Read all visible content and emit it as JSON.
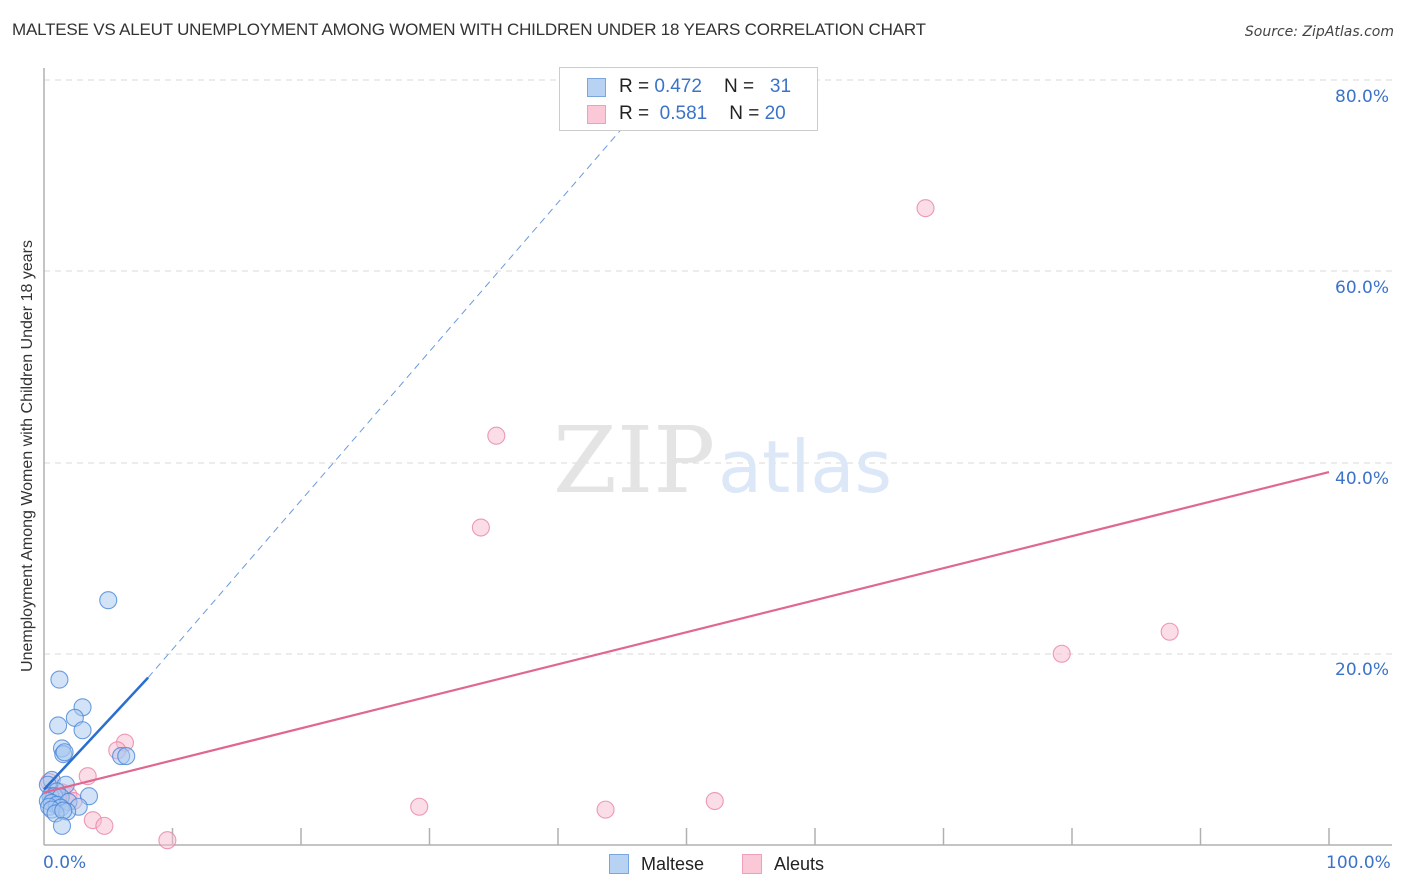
{
  "header": {
    "title": "MALTESE VS ALEUT UNEMPLOYMENT AMONG WOMEN WITH CHILDREN UNDER 18 YEARS CORRELATION CHART",
    "source": "Source: ZipAtlas.com"
  },
  "watermark": {
    "zip": "ZIP",
    "atlas": "atlas"
  },
  "legend_top": [
    {
      "r_label": "R =",
      "r_value": "0.472",
      "n_label": "N =",
      "n_value": "31",
      "color": "#a8c8f0"
    },
    {
      "r_label": "R =",
      "r_value": "0.581",
      "n_label": "N =",
      "n_value": "20",
      "color": "#f8bcd0"
    }
  ],
  "legend_bottom": [
    {
      "label": "Maltese",
      "color": "#a8c8f0"
    },
    {
      "label": "Aleuts",
      "color": "#f8bcd0"
    }
  ],
  "axes": {
    "ylabel": "Unemployment Among Women with Children Under 18 years",
    "x_min_label": "0.0%",
    "x_max_label": "100.0%",
    "y_ticks": [
      "20.0%",
      "40.0%",
      "60.0%",
      "80.0%"
    ]
  },
  "colors": {
    "maltese_fill": "#a8c8f0",
    "maltese_stroke": "#4a86d8",
    "maltese_line": "#2a6fd0",
    "aleuts_fill": "#f8bcd0",
    "aleuts_stroke": "#e882a4",
    "aleuts_line": "#e06890",
    "tick_label": "#3b73c8"
  },
  "chart_data": {
    "type": "scatter",
    "title": "MALTESE VS ALEUT UNEMPLOYMENT AMONG WOMEN WITH CHILDREN UNDER 18 YEARS CORRELATION CHART",
    "xlabel": "",
    "ylabel": "Unemployment Among Women with Children Under 18 years",
    "xlim": [
      0,
      100
    ],
    "ylim": [
      0,
      80
    ],
    "x_tick_labels": [
      "0.0%",
      "100.0%"
    ],
    "y_tick_labels": [
      "20.0%",
      "40.0%",
      "60.0%",
      "80.0%"
    ],
    "grid": true,
    "legend_position": "top-center and bottom",
    "series": [
      {
        "name": "Maltese",
        "r": 0.472,
        "n": 31,
        "points": [
          [
            5.0,
            25.6
          ],
          [
            1.2,
            17.3
          ],
          [
            3.0,
            14.4
          ],
          [
            2.4,
            13.3
          ],
          [
            1.1,
            12.5
          ],
          [
            3.0,
            12.0
          ],
          [
            1.4,
            10.1
          ],
          [
            1.5,
            9.5
          ],
          [
            1.6,
            9.7
          ],
          [
            6.0,
            9.3
          ],
          [
            6.4,
            9.3
          ],
          [
            0.6,
            6.8
          ],
          [
            0.3,
            6.3
          ],
          [
            1.7,
            6.3
          ],
          [
            1.0,
            5.6
          ],
          [
            0.5,
            5.1
          ],
          [
            0.8,
            5.1
          ],
          [
            1.3,
            5.0
          ],
          [
            3.5,
            5.1
          ],
          [
            0.3,
            4.6
          ],
          [
            0.6,
            4.4
          ],
          [
            1.0,
            4.2
          ],
          [
            1.9,
            4.5
          ],
          [
            0.4,
            4.0
          ],
          [
            1.3,
            3.9
          ],
          [
            2.7,
            4.0
          ],
          [
            0.6,
            3.7
          ],
          [
            1.8,
            3.5
          ],
          [
            0.9,
            3.3
          ],
          [
            1.5,
            3.6
          ],
          [
            1.4,
            2.0
          ]
        ],
        "trend_solid": [
          [
            0,
            5.8
          ],
          [
            8.1,
            17.5
          ]
        ],
        "trend_dashed_to": [
          45.6,
          75.9
        ]
      },
      {
        "name": "Aleuts",
        "r": 0.581,
        "n": 20,
        "points": [
          [
            68.6,
            66.6
          ],
          [
            35.2,
            42.8
          ],
          [
            34.0,
            33.2
          ],
          [
            87.6,
            22.3
          ],
          [
            79.2,
            20.0
          ],
          [
            6.3,
            10.7
          ],
          [
            5.7,
            9.9
          ],
          [
            3.4,
            7.2
          ],
          [
            0.4,
            6.6
          ],
          [
            1.4,
            5.5
          ],
          [
            1.9,
            5.2
          ],
          [
            2.3,
            4.6
          ],
          [
            1.1,
            4.9
          ],
          [
            0.9,
            4.2
          ],
          [
            29.2,
            4.0
          ],
          [
            52.2,
            4.6
          ],
          [
            43.7,
            3.7
          ],
          [
            3.8,
            2.6
          ],
          [
            4.7,
            2.0
          ],
          [
            9.6,
            0.5
          ]
        ],
        "trend_solid": [
          [
            0,
            5.5
          ],
          [
            100,
            39.0
          ]
        ]
      }
    ]
  }
}
